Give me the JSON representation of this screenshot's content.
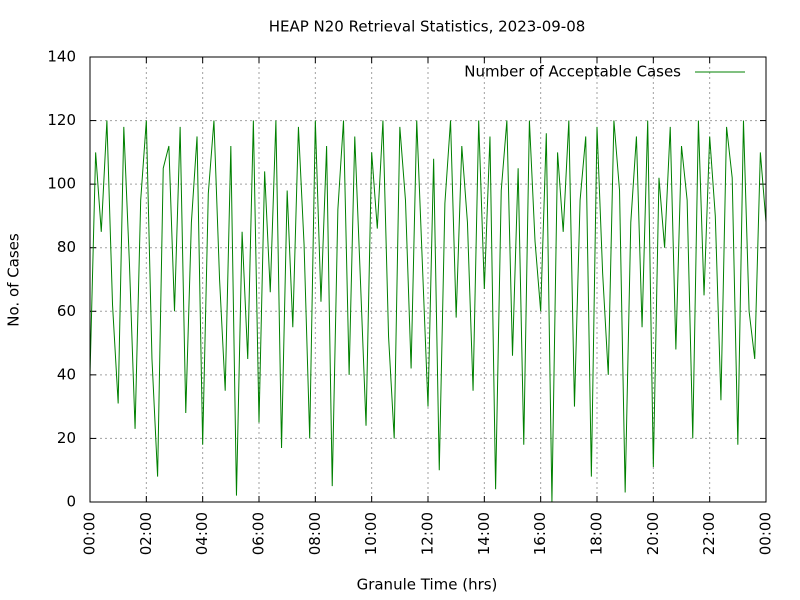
{
  "chart_data": {
    "type": "line",
    "title": "HEAP N20 Retrieval Statistics, 2023-09-08",
    "xlabel": "Granule Time (hrs)",
    "ylabel": "No. of Cases",
    "xlim": [
      0,
      24
    ],
    "ylim": [
      0,
      140
    ],
    "xticks": [
      {
        "value": 0,
        "label": "00:00"
      },
      {
        "value": 2,
        "label": "02:00"
      },
      {
        "value": 4,
        "label": "04:00"
      },
      {
        "value": 6,
        "label": "06:00"
      },
      {
        "value": 8,
        "label": "08:00"
      },
      {
        "value": 10,
        "label": "10:00"
      },
      {
        "value": 12,
        "label": "12:00"
      },
      {
        "value": 14,
        "label": "14:00"
      },
      {
        "value": 16,
        "label": "16:00"
      },
      {
        "value": 18,
        "label": "18:00"
      },
      {
        "value": 20,
        "label": "20:00"
      },
      {
        "value": 22,
        "label": "22:00"
      },
      {
        "value": 24,
        "label": "00:00"
      }
    ],
    "yticks": [
      0,
      20,
      40,
      60,
      80,
      100,
      120,
      140
    ],
    "grid": true,
    "legend": "top-right",
    "x": [
      0,
      0.2,
      0.4,
      0.6,
      0.8,
      1,
      1.2,
      1.4,
      1.6,
      1.8,
      2,
      2.2,
      2.4,
      2.6,
      2.8,
      3,
      3.2,
      3.4,
      3.6,
      3.8,
      4,
      4.2,
      4.4,
      4.6,
      4.8,
      5,
      5.2,
      5.4,
      5.6,
      5.8,
      6,
      6.2,
      6.4,
      6.6,
      6.8,
      7,
      7.2,
      7.4,
      7.6,
      7.8,
      8,
      8.2,
      8.4,
      8.6,
      8.8,
      9,
      9.2,
      9.4,
      9.6,
      9.8,
      10,
      10.2,
      10.4,
      10.6,
      10.8,
      11,
      11.2,
      11.4,
      11.6,
      11.8,
      12,
      12.2,
      12.4,
      12.6,
      12.8,
      13,
      13.2,
      13.4,
      13.6,
      13.8,
      14,
      14.2,
      14.4,
      14.6,
      14.8,
      15,
      15.2,
      15.4,
      15.6,
      15.8,
      16,
      16.2,
      16.4,
      16.6,
      16.8,
      17,
      17.2,
      17.4,
      17.6,
      17.8,
      18,
      18.2,
      18.4,
      18.6,
      18.8,
      19,
      19.2,
      19.4,
      19.6,
      19.8,
      20,
      20.2,
      20.4,
      20.6,
      20.8,
      21,
      21.2,
      21.4,
      21.6,
      21.8,
      22,
      22.2,
      22.4,
      22.6,
      22.8,
      23,
      23.2,
      23.4,
      23.6,
      23.8,
      24
    ],
    "series": [
      {
        "name": "Number of Acceptable Cases",
        "color": "#008000",
        "values": [
          40,
          110,
          85,
          120,
          62,
          31,
          118,
          75,
          23,
          95,
          120,
          45,
          8,
          105,
          112,
          60,
          118,
          28,
          88,
          115,
          18,
          97,
          120,
          70,
          35,
          112,
          2,
          85,
          45,
          120,
          25,
          104,
          66,
          120,
          17,
          98,
          55,
          118,
          81,
          20,
          120,
          63,
          112,
          5,
          92,
          120,
          40,
          115,
          70,
          24,
          110,
          86,
          120,
          52,
          20,
          118,
          95,
          42,
          120,
          75,
          30,
          108,
          10,
          94,
          120,
          58,
          112,
          88,
          35,
          120,
          67,
          115,
          4,
          98,
          120,
          46,
          105,
          18,
          120,
          82,
          60,
          116,
          0,
          110,
          85,
          120,
          30,
          95,
          115,
          8,
          118,
          72,
          40,
          120,
          98,
          3,
          88,
          115,
          55,
          120,
          11,
          102,
          80,
          118,
          48,
          112,
          95,
          20,
          120,
          65,
          115,
          90,
          32,
          118,
          102,
          18,
          120,
          60,
          45,
          110,
          88
        ]
      }
    ]
  }
}
